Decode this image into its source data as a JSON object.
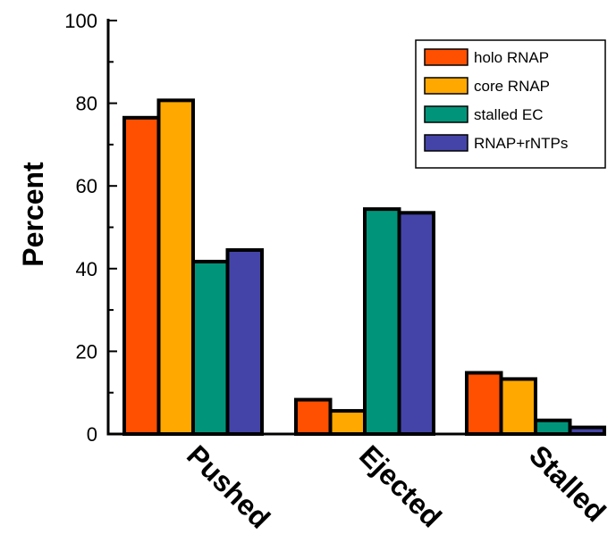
{
  "chart_data": {
    "type": "bar",
    "title": "",
    "xlabel": "",
    "ylabel": "Percent",
    "categories": [
      "Pushed",
      "Ejected",
      "Stalled"
    ],
    "series": [
      {
        "name": "holo RNAP",
        "color": "#ff4f00",
        "values": [
          76.5,
          8.3,
          14.8
        ]
      },
      {
        "name": "core RNAP",
        "color": "#ffa800",
        "values": [
          80.7,
          5.6,
          13.3
        ]
      },
      {
        "name": "stalled EC",
        "color": "#00957a",
        "values": [
          41.7,
          54.4,
          3.3
        ]
      },
      {
        "name": "RNAP+rNTPs",
        "color": "#4444a8",
        "values": [
          44.5,
          53.5,
          1.6
        ]
      }
    ],
    "ylim": [
      0,
      100
    ],
    "yticks": [
      0,
      20,
      40,
      60,
      80,
      100
    ],
    "grid": false,
    "legend": "top-right"
  }
}
